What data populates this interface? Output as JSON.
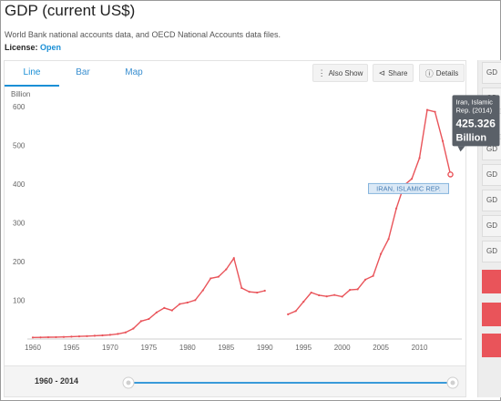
{
  "header": {
    "title": "GDP (current US$)",
    "source": "World Bank national accounts data, and OECD National Accounts data files.",
    "license_label": "License:",
    "license_value": "Open"
  },
  "tabs": [
    {
      "label": "Line",
      "active": true
    },
    {
      "label": "Bar",
      "active": false
    },
    {
      "label": "Map",
      "active": false
    }
  ],
  "toolbar": {
    "also_show": "Also Show",
    "share": "Share",
    "details": "Details"
  },
  "colors": {
    "series": "#e9545a",
    "accent": "#1a8fd6",
    "tooltip_bg": "#5a6068"
  },
  "tooltip": {
    "country": "Iran, Islamic Rep. (2014)",
    "value": "425.326",
    "unit": "Billion"
  },
  "series_label": "IRAN, ISLAMIC REP.",
  "right_rail": {
    "items": [
      "GD",
      "GD",
      "GD",
      "GD",
      "GD",
      "GD",
      "GD",
      "GD"
    ]
  },
  "range": {
    "label": "1960 - 2014",
    "start": 1960,
    "end": 2014
  },
  "chart_data": {
    "type": "line",
    "ylabel": "Billion",
    "ylim": [
      0,
      650
    ],
    "xlim": [
      1960,
      2015
    ],
    "x_ticks": [
      1960,
      1965,
      1970,
      1975,
      1980,
      1985,
      1990,
      1995,
      2000,
      2005,
      2010
    ],
    "y_ticks": [
      100,
      200,
      300,
      400,
      500,
      600
    ],
    "grid": false,
    "series": [
      {
        "name": "IRAN, ISLAMIC REP.",
        "points": [
          [
            1960,
            4
          ],
          [
            1961,
            4.3
          ],
          [
            1962,
            4.6
          ],
          [
            1963,
            4.9
          ],
          [
            1964,
            5.3
          ],
          [
            1965,
            6.2
          ],
          [
            1966,
            6.8
          ],
          [
            1967,
            7.5
          ],
          [
            1968,
            8.5
          ],
          [
            1969,
            9.5
          ],
          [
            1970,
            10.9
          ],
          [
            1971,
            13.2
          ],
          [
            1972,
            17.1
          ],
          [
            1973,
            27.1
          ],
          [
            1974,
            46.2
          ],
          [
            1975,
            51.9
          ],
          [
            1976,
            68.7
          ],
          [
            1977,
            80.4
          ],
          [
            1978,
            74
          ],
          [
            1979,
            90.4
          ],
          [
            1980,
            94.3
          ],
          [
            1981,
            100.5
          ],
          [
            1982,
            125.9
          ],
          [
            1983,
            156.8
          ],
          [
            1984,
            160.9
          ],
          [
            1985,
            180
          ],
          [
            1986,
            209
          ],
          [
            1987,
            132
          ],
          [
            1988,
            122
          ],
          [
            1989,
            120
          ],
          [
            1990,
            124.8
          ],
          [
            1993,
            63.8
          ],
          [
            1994,
            72.3
          ],
          [
            1995,
            96.4
          ],
          [
            1996,
            120
          ],
          [
            1997,
            113
          ],
          [
            1998,
            110.2
          ],
          [
            1999,
            113.8
          ],
          [
            2000,
            109.6
          ],
          [
            2001,
            126.9
          ],
          [
            2002,
            128.6
          ],
          [
            2003,
            153.5
          ],
          [
            2004,
            163.2
          ],
          [
            2005,
            219.9
          ],
          [
            2006,
            258.6
          ],
          [
            2007,
            337.5
          ],
          [
            2008,
            397.2
          ],
          [
            2009,
            414.1
          ],
          [
            2010,
            467.8
          ],
          [
            2011,
            592
          ],
          [
            2012,
            587.2
          ],
          [
            2013,
            511.6
          ],
          [
            2014,
            425.326
          ]
        ]
      }
    ]
  }
}
